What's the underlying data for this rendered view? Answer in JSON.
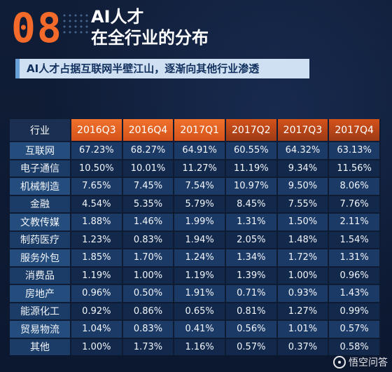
{
  "header": {
    "number": "08",
    "title_line1": "AI人才",
    "title_line2": "在全行业的分布",
    "subtitle": "AI人才占据互联网半壁江山，逐渐向其他行业渗透"
  },
  "watermark": {
    "text": "悟空问答"
  },
  "colors": {
    "accent": "#f36a2a",
    "background": "#0e1b33",
    "row_band": "#1b3a66"
  },
  "chart_data": {
    "type": "table",
    "columns": [
      "行业",
      "2016Q3",
      "2016Q4",
      "2017Q1",
      "2017Q2",
      "2017Q3",
      "2017Q4"
    ],
    "rows": [
      [
        "互联网",
        "67.23%",
        "68.27%",
        "64.91%",
        "60.55%",
        "64.32%",
        "63.13%"
      ],
      [
        "电子通信",
        "10.50%",
        "10.01%",
        "11.27%",
        "11.19%",
        "9.34%",
        "11.56%"
      ],
      [
        "机械制造",
        "7.65%",
        "7.45%",
        "7.54%",
        "10.97%",
        "9.50%",
        "8.06%"
      ],
      [
        "金融",
        "4.54%",
        "5.35%",
        "5.79%",
        "8.45%",
        "7.55%",
        "7.76%"
      ],
      [
        "文教传媒",
        "1.88%",
        "1.46%",
        "1.99%",
        "1.31%",
        "1.50%",
        "2.11%"
      ],
      [
        "制药医疗",
        "1.23%",
        "0.83%",
        "1.94%",
        "2.05%",
        "1.48%",
        "1.54%"
      ],
      [
        "服务外包",
        "1.85%",
        "1.70%",
        "1.24%",
        "1.34%",
        "1.72%",
        "1.31%"
      ],
      [
        "消费品",
        "1.19%",
        "1.00%",
        "1.19%",
        "1.39%",
        "1.00%",
        "0.96%"
      ],
      [
        "房地产",
        "0.96%",
        "0.50%",
        "1.91%",
        "0.71%",
        "0.93%",
        "1.43%"
      ],
      [
        "能源化工",
        "0.92%",
        "0.86%",
        "0.65%",
        "0.81%",
        "1.27%",
        "0.99%"
      ],
      [
        "贸易物流",
        "1.04%",
        "0.83%",
        "0.41%",
        "0.56%",
        "1.01%",
        "0.57%"
      ],
      [
        "其他",
        "1.00%",
        "1.73%",
        "1.16%",
        "0.57%",
        "0.37%",
        "0.58%"
      ]
    ]
  }
}
